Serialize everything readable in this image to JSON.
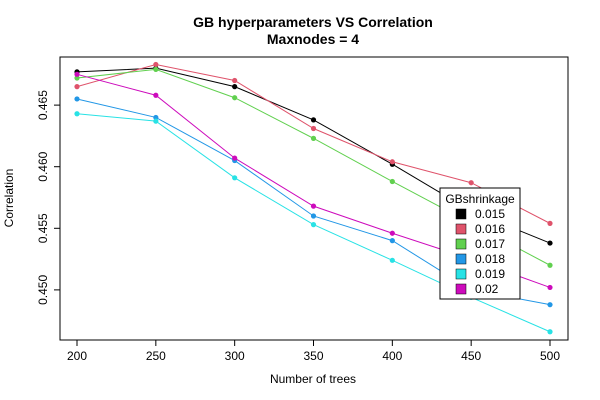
{
  "chart_data": {
    "type": "line",
    "title": "GB hyperparameters VS Correlation",
    "subtitle": "Maxnodes = 4",
    "xlabel": "Number of trees",
    "ylabel": "Correlation",
    "x": [
      200,
      250,
      300,
      350,
      400,
      450,
      500
    ],
    "xlim": [
      200,
      500
    ],
    "ylim": [
      0.4465,
      0.4685
    ],
    "xticks": [
      "200",
      "250",
      "300",
      "350",
      "400",
      "450",
      "500"
    ],
    "yticks": [
      "0.450",
      "0.455",
      "0.460",
      "0.465"
    ],
    "ytick_values": [
      0.45,
      0.455,
      0.46,
      0.465
    ],
    "grid": false,
    "legend": {
      "title": "GBshrinkage",
      "position": "right"
    },
    "series": [
      {
        "name": "0.015",
        "color": "#000000",
        "values": [
          0.4677,
          0.468,
          0.4665,
          0.4638,
          0.4602,
          0.4564,
          0.4538
        ]
      },
      {
        "name": "0.016",
        "color": "#DF536B",
        "values": [
          0.4665,
          0.4683,
          0.467,
          0.4631,
          0.4604,
          0.4587,
          0.4554
        ]
      },
      {
        "name": "0.017",
        "color": "#61D04F",
        "values": [
          0.4672,
          0.4679,
          0.4656,
          0.4623,
          0.4588,
          0.4554,
          0.452
        ]
      },
      {
        "name": "0.018",
        "color": "#2297E6",
        "values": [
          0.4655,
          0.464,
          0.4605,
          0.456,
          0.454,
          0.45,
          0.4488
        ]
      },
      {
        "name": "0.019",
        "color": "#28E2E5",
        "values": [
          0.4643,
          0.4637,
          0.4591,
          0.4553,
          0.4524,
          0.4494,
          0.4466
        ]
      },
      {
        "name": "0.02",
        "color": "#CD0BBC",
        "values": [
          0.4675,
          0.4658,
          0.4607,
          0.4568,
          0.4546,
          0.4525,
          0.4502
        ]
      }
    ]
  }
}
